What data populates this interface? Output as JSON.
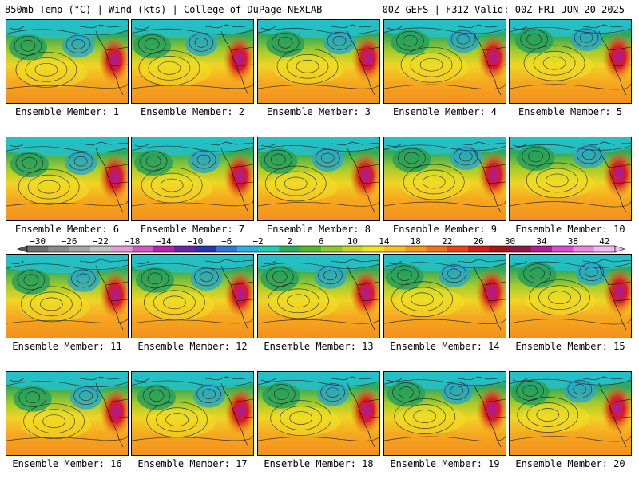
{
  "header": {
    "left": "850mb Temp (°C) | Wind (kts) | College of DuPage NEXLAB",
    "right": "00Z GEFS | F312 Valid: 00Z FRI JUN 20 2025"
  },
  "panels": [
    {
      "label": "Ensemble Member: 1"
    },
    {
      "label": "Ensemble Member: 2"
    },
    {
      "label": "Ensemble Member: 3"
    },
    {
      "label": "Ensemble Member: 4"
    },
    {
      "label": "Ensemble Member: 5"
    },
    {
      "label": "Ensemble Member: 6"
    },
    {
      "label": "Ensemble Member: 7"
    },
    {
      "label": "Ensemble Member: 8"
    },
    {
      "label": "Ensemble Member: 9"
    },
    {
      "label": "Ensemble Member: 10"
    },
    {
      "label": "Ensemble Member: 11"
    },
    {
      "label": "Ensemble Member: 12"
    },
    {
      "label": "Ensemble Member: 13"
    },
    {
      "label": "Ensemble Member: 14"
    },
    {
      "label": "Ensemble Member: 15"
    },
    {
      "label": "Ensemble Member: 16"
    },
    {
      "label": "Ensemble Member: 17"
    },
    {
      "label": "Ensemble Member: 18"
    },
    {
      "label": "Ensemble Member: 19"
    },
    {
      "label": "Ensemble Member: 20"
    }
  ],
  "colorbar": {
    "ticks": [
      "−30",
      "−26",
      "−22",
      "−18",
      "−14",
      "−10",
      "−6",
      "−2",
      "2",
      "6",
      "10",
      "14",
      "18",
      "22",
      "26",
      "30",
      "34",
      "38",
      "42"
    ],
    "colors": [
      "#6e6e6e",
      "#8a8a8a",
      "#a5a5a5",
      "#c2c2c2",
      "#e39bd6",
      "#d35ac4",
      "#b624b0",
      "#6a22a8",
      "#2a34b8",
      "#2a78d8",
      "#26b2e6",
      "#22cdb0",
      "#28b062",
      "#54b82c",
      "#8ec82a",
      "#c8d426",
      "#f0e224",
      "#f6c020",
      "#f69a1c",
      "#f0721a",
      "#e84418",
      "#d41c16",
      "#aa1414",
      "#8a1a4a",
      "#b41c92",
      "#d84cd0",
      "#e886e2",
      "#f2baf0"
    ]
  }
}
